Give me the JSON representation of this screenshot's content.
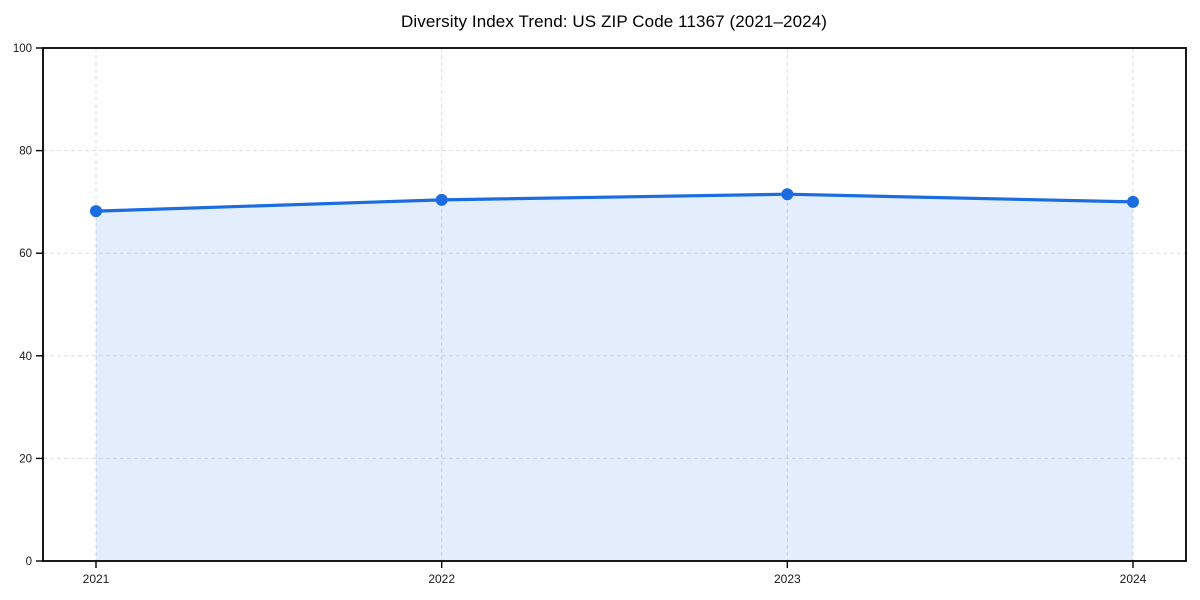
{
  "title": "Diversity Index Trend: US ZIP Code 11367 (2021–2024)",
  "chart_data": {
    "type": "area",
    "title": "Diversity Index Trend: US ZIP Code 11367 (2021–2024)",
    "categories": [
      "2021",
      "2022",
      "2023",
      "2024"
    ],
    "series": [
      {
        "name": "Diversity Index",
        "values": [
          68.2,
          70.4,
          71.5,
          70.0
        ]
      }
    ],
    "xlabel": "",
    "ylabel": "",
    "ylim": [
      0,
      100
    ],
    "yticks": [
      0,
      20,
      40,
      60,
      80,
      100
    ],
    "grid": true,
    "grid_style": "dashed",
    "legend": "none",
    "colors": {
      "line": "#1a6ce0",
      "marker": "#1a6ce0",
      "fill": "rgba(26,108,224,0.12)",
      "grid": "#dedede",
      "spine": "#000000",
      "tick_label": "#1a1a1a",
      "background": "#ffffff"
    }
  }
}
